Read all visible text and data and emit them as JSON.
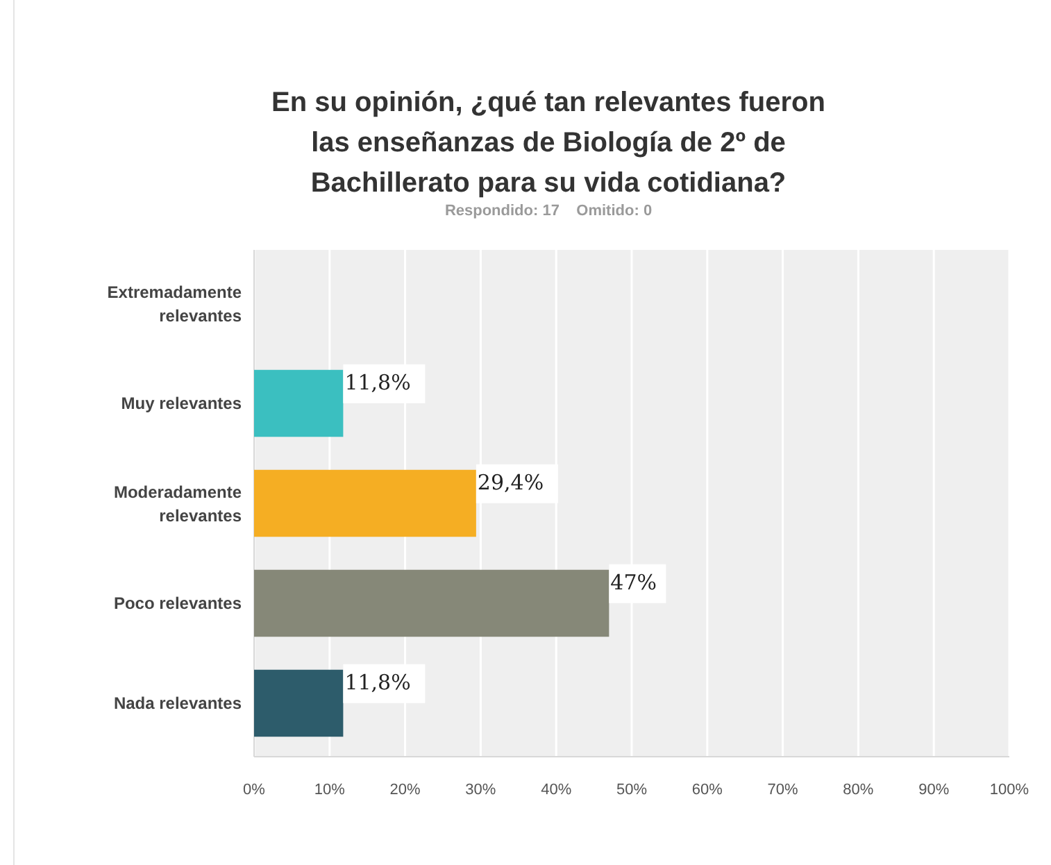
{
  "chart_data": {
    "type": "bar",
    "orientation": "horizontal",
    "title": "En su opinión, ¿qué tan relevantes fueron las enseñanzas de Biología de 2º de Bachillerato para su vida cotidiana?",
    "subtitle": "Respondido: 17    Omitido: 0",
    "categories": [
      "Extremadamente relevantes",
      "Muy relevantes",
      "Moderadamente relevantes",
      "Poco relevantes",
      "Nada relevantes"
    ],
    "values": [
      0,
      11.8,
      29.4,
      47,
      11.8
    ],
    "colors": [
      "#3bbfc0",
      "#3bbfc0",
      "#f5ae23",
      "#868878",
      "#2d5c6b"
    ],
    "value_labels": [
      null,
      "11,8%",
      "29,4%",
      "47%",
      "11,8%"
    ],
    "xlim": [
      0,
      100
    ],
    "xticks": [
      {
        "value": 0,
        "label": "0%"
      },
      {
        "value": 10,
        "label": "10%"
      },
      {
        "value": 20,
        "label": "20%"
      },
      {
        "value": 30,
        "label": "30%"
      },
      {
        "value": 40,
        "label": "40%"
      },
      {
        "value": 50,
        "label": "50%"
      },
      {
        "value": 60,
        "label": "60%"
      },
      {
        "value": 70,
        "label": "70%"
      },
      {
        "value": 80,
        "label": "80%"
      },
      {
        "value": 90,
        "label": "90%"
      },
      {
        "value": 100,
        "label": "100%"
      }
    ],
    "grid": "x"
  }
}
